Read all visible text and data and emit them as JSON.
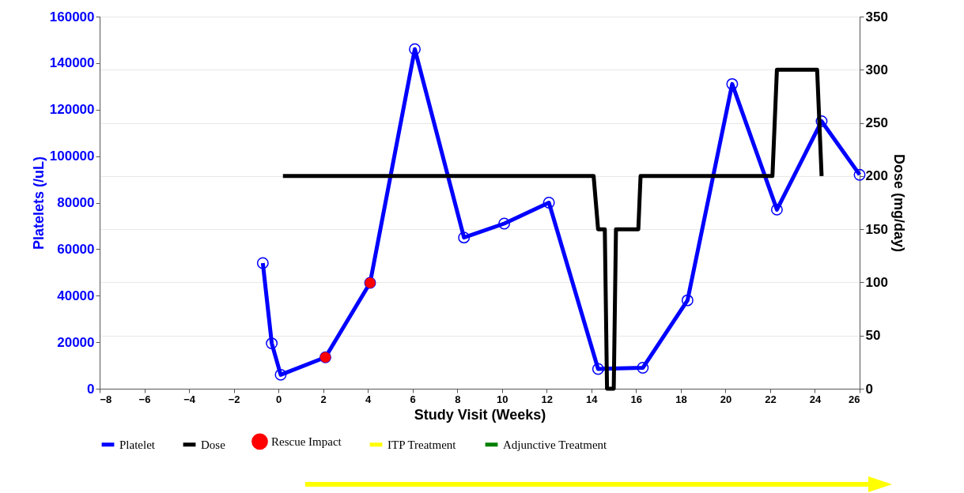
{
  "chart_data": {
    "type": "line",
    "xlabel": "Study Visit (Weeks)",
    "ylabel": "Platelets (/uL)",
    "y2label": "Dose (mg/day)",
    "xlim": [
      -8,
      26
    ],
    "xticks": [
      -8,
      -6,
      -4,
      -2,
      0,
      2,
      4,
      6,
      8,
      10,
      12,
      14,
      16,
      18,
      20,
      22,
      24,
      26
    ],
    "ylim": [
      0,
      160000
    ],
    "yticks": [
      0,
      20000,
      40000,
      60000,
      80000,
      100000,
      120000,
      140000,
      160000
    ],
    "y2lim": [
      0,
      350
    ],
    "y2ticks": [
      0,
      50,
      100,
      150,
      200,
      250,
      300,
      350
    ],
    "grid": "y2",
    "legend": "bottom",
    "series": [
      {
        "name": "Platelet",
        "type": "line",
        "marker": "circle",
        "color": "#0000ff",
        "x": [
          -0.7,
          -0.3,
          0.1,
          2.1,
          4.1,
          6.1,
          8.3,
          10.1,
          12.1,
          14.3,
          16.3,
          18.3,
          20.3,
          22.3,
          24.3,
          26
        ],
        "values": [
          54000,
          19500,
          6000,
          13500,
          45500,
          146000,
          65000,
          71000,
          80000,
          8500,
          9000,
          38000,
          131000,
          77000,
          115000,
          92000
        ]
      },
      {
        "name": "Dose",
        "type": "line",
        "color": "#000000",
        "axis": "y2",
        "x": [
          0.2,
          14.1,
          14.3,
          14.6,
          14.7,
          15.0,
          15.1,
          16.1,
          16.2,
          22.1,
          22.3,
          24.1,
          24.3
        ],
        "values": [
          200,
          200,
          150,
          150,
          0,
          0,
          150,
          150,
          200,
          200,
          300,
          300,
          200
        ]
      },
      {
        "name": "Rescue Impact",
        "type": "scatter",
        "marker": "circle",
        "color": "#ff0000",
        "x": [
          2.1,
          4.1
        ],
        "values": [
          13500,
          45500
        ]
      },
      {
        "name": "ITP Treatment",
        "type": "line",
        "color": "#ffff00"
      },
      {
        "name": "Adjunctive Treatment",
        "type": "line",
        "color": "#008000"
      }
    ]
  }
}
